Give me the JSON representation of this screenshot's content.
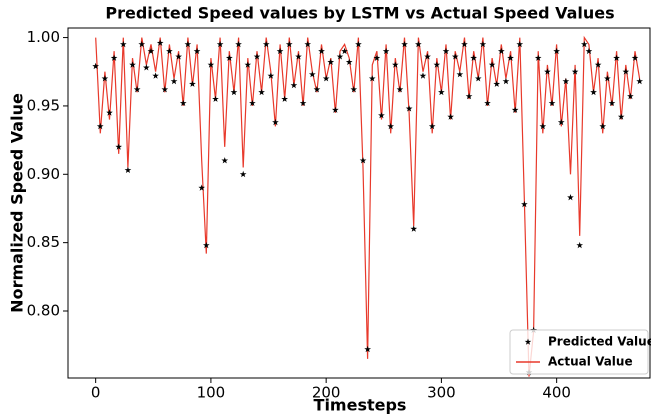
{
  "chart_data": {
    "type": "line",
    "title": "Predicted Speed values by LSTM vs Actual Speed Values",
    "x_label": "Timesteps",
    "y_label": "Normalized Speed Value",
    "legend": "lower right",
    "x": [
      0,
      4,
      8,
      12,
      16,
      20,
      24,
      28,
      32,
      36,
      40,
      44,
      48,
      52,
      56,
      60,
      64,
      68,
      72,
      76,
      80,
      84,
      88,
      92,
      96,
      100,
      104,
      108,
      112,
      116,
      120,
      124,
      128,
      132,
      136,
      140,
      144,
      148,
      152,
      156,
      160,
      164,
      168,
      172,
      176,
      180,
      184,
      188,
      192,
      196,
      200,
      204,
      208,
      212,
      216,
      220,
      224,
      228,
      232,
      236,
      240,
      244,
      248,
      252,
      256,
      260,
      264,
      268,
      272,
      276,
      280,
      284,
      288,
      292,
      296,
      300,
      304,
      308,
      312,
      316,
      320,
      324,
      328,
      332,
      336,
      340,
      344,
      348,
      352,
      356,
      360,
      364,
      368,
      372,
      376,
      380,
      384,
      388,
      392,
      396,
      400,
      404,
      408,
      412,
      416,
      420,
      424,
      428,
      432,
      436,
      440,
      444,
      448,
      452,
      456,
      460,
      464,
      468,
      472
    ],
    "series": [
      {
        "name": "Predicted Value",
        "color": "#000000",
        "marker": "star",
        "values": [
          0.979,
          0.935,
          0.97,
          0.945,
          0.985,
          0.92,
          0.995,
          0.903,
          0.98,
          0.962,
          0.995,
          0.978,
          0.99,
          0.972,
          0.996,
          0.962,
          0.99,
          0.968,
          0.986,
          0.952,
          0.995,
          0.966,
          0.99,
          0.89,
          0.848,
          0.98,
          0.955,
          0.995,
          0.91,
          0.985,
          0.96,
          0.995,
          0.9,
          0.98,
          0.952,
          0.986,
          0.96,
          0.995,
          0.972,
          0.938,
          0.99,
          0.955,
          0.995,
          0.965,
          0.986,
          0.952,
          0.995,
          0.973,
          0.962,
          0.99,
          0.97,
          0.982,
          0.947,
          0.986,
          0.99,
          0.982,
          0.962,
          0.995,
          0.91,
          0.772,
          0.97,
          0.985,
          0.943,
          0.99,
          0.935,
          0.98,
          0.962,
          0.995,
          0.948,
          0.86,
          0.995,
          0.972,
          0.986,
          0.935,
          0.98,
          0.96,
          0.99,
          0.942,
          0.986,
          0.973,
          0.995,
          0.957,
          0.985,
          0.97,
          0.995,
          0.952,
          0.98,
          0.966,
          0.99,
          0.968,
          0.985,
          0.947,
          0.995,
          0.878,
          0.755,
          0.786,
          0.985,
          0.935,
          0.975,
          0.952,
          0.99,
          0.938,
          0.968,
          0.883,
          0.975,
          0.848,
          0.995,
          0.99,
          0.96,
          0.98,
          0.935,
          0.97,
          0.952,
          0.985,
          0.942,
          0.975,
          0.957,
          0.985,
          0.968
        ]
      },
      {
        "name": "Actual Value",
        "color": "#e8392b",
        "marker": "line",
        "values": [
          1.0,
          0.93,
          0.975,
          0.94,
          0.99,
          0.915,
          1.0,
          0.905,
          0.985,
          0.96,
          1.0,
          0.98,
          0.995,
          0.975,
          1.0,
          0.96,
          0.995,
          0.97,
          0.99,
          0.95,
          1.0,
          0.965,
          0.995,
          0.91,
          0.842,
          0.985,
          0.955,
          1.0,
          0.92,
          0.99,
          0.96,
          1.0,
          0.905,
          0.985,
          0.95,
          0.99,
          0.96,
          1.0,
          0.975,
          0.935,
          0.995,
          0.955,
          1.0,
          0.965,
          0.99,
          0.95,
          1.0,
          0.975,
          0.96,
          0.995,
          0.97,
          0.985,
          0.945,
          0.99,
          0.995,
          0.985,
          0.96,
          1.0,
          0.905,
          0.765,
          0.98,
          0.99,
          0.94,
          0.995,
          0.93,
          0.985,
          0.96,
          1.0,
          0.945,
          0.862,
          1.0,
          0.975,
          0.99,
          0.93,
          0.985,
          0.96,
          0.995,
          0.94,
          0.99,
          0.975,
          1.0,
          0.955,
          0.99,
          0.97,
          1.0,
          0.95,
          0.985,
          0.965,
          0.995,
          0.97,
          0.99,
          0.945,
          1.0,
          0.88,
          0.752,
          0.785,
          0.99,
          0.93,
          0.98,
          0.95,
          0.995,
          0.935,
          0.97,
          0.9,
          0.98,
          0.855,
          1.0,
          0.995,
          0.96,
          0.985,
          0.93,
          0.975,
          0.95,
          0.99,
          0.94,
          0.98,
          0.955,
          0.99,
          0.97
        ]
      }
    ],
    "xlim": [
      -24,
      481
    ],
    "ylim": [
      0.751,
      1.007
    ],
    "xticks": [
      0,
      100,
      200,
      300,
      400
    ],
    "yticks": [
      {
        "value": 0.8,
        "label": "0.80"
      },
      0.85,
      {
        "value": 0.9,
        "label": "0.90"
      },
      0.95,
      {
        "value": 1.0,
        "label": "1.00"
      }
    ]
  }
}
